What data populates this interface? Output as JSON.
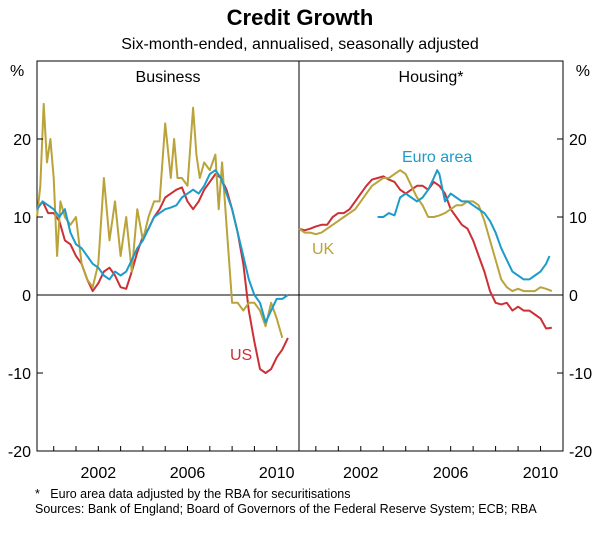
{
  "chart_data": {
    "type": "line",
    "title": "Credit Growth",
    "subtitle": "Six-month-ended, annualised, seasonally adjusted",
    "ylabel": "%",
    "ylim": [
      -20,
      30
    ],
    "yticks": [
      20,
      10,
      0,
      -10,
      -20
    ],
    "xlim": [
      1999.25,
      2011.0
    ],
    "xticks": [
      2002,
      2006,
      2010
    ],
    "panels": [
      {
        "title": "Business",
        "series": [
          {
            "name": "US",
            "color": "#cc2f36",
            "label_text": "US",
            "x": [
              1999.25,
              1999.5,
              1999.75,
              2000,
              2000.25,
              2000.5,
              2000.75,
              2001,
              2001.25,
              2001.5,
              2001.75,
              2002,
              2002.25,
              2002.5,
              2002.75,
              2003,
              2003.25,
              2003.5,
              2003.75,
              2004,
              2004.25,
              2004.5,
              2004.75,
              2005,
              2005.25,
              2005.5,
              2005.75,
              2006,
              2006.25,
              2006.5,
              2006.75,
              2007,
              2007.25,
              2007.5,
              2007.75,
              2008,
              2008.25,
              2008.5,
              2008.75,
              2009,
              2009.25,
              2009.5,
              2009.75,
              2010,
              2010.25,
              2010.5
            ],
            "y": [
              11,
              12,
              10.5,
              10.5,
              9.5,
              7,
              6.5,
              5,
              4,
              2,
              0.5,
              1.5,
              3,
              3.5,
              2.5,
              1,
              0.8,
              3,
              5.5,
              7.5,
              8.5,
              10,
              11,
              12.5,
              13,
              13.5,
              13.8,
              12,
              11,
              12,
              13.5,
              14.5,
              15.5,
              15,
              13.5,
              11,
              8,
              4,
              -2,
              -6,
              -9.5,
              -10,
              -9.5,
              -8,
              -7,
              -5.5
            ]
          },
          {
            "name": "UK",
            "color": "#b9a33a",
            "label_text": "",
            "x": [
              1999.25,
              1999.4,
              1999.55,
              1999.7,
              1999.85,
              2000,
              2000.15,
              2000.3,
              2000.5,
              2000.75,
              2001,
              2001.25,
              2001.5,
              2001.75,
              2002,
              2002.25,
              2002.5,
              2002.75,
              2003,
              2003.25,
              2003.5,
              2003.75,
              2004,
              2004.25,
              2004.5,
              2004.75,
              2005,
              2005.25,
              2005.4,
              2005.55,
              2005.75,
              2006,
              2006.25,
              2006.4,
              2006.55,
              2006.75,
              2007,
              2007.25,
              2007.4,
              2007.55,
              2007.75,
              2008,
              2008.25,
              2008.5,
              2008.75,
              2009,
              2009.25,
              2009.5,
              2009.75,
              2010,
              2010.25
            ],
            "y": [
              10,
              14,
              24.5,
              17,
              20,
              15,
              5,
              12,
              10,
              9,
              10,
              4,
              2,
              1,
              4,
              15,
              7,
              12,
              5,
              10,
              3,
              11,
              7,
              10,
              12,
              12,
              22,
              15,
              20,
              15,
              15,
              14,
              24,
              18,
              15,
              17,
              16,
              18,
              11,
              17,
              9,
              -1,
              -1,
              -2,
              -1,
              -1,
              -2,
              -4,
              -1,
              -3,
              -5.5
            ]
          },
          {
            "name": "Euro area",
            "color": "#1d9bc9",
            "label_text": "",
            "x": [
              1999.25,
              1999.5,
              1999.75,
              2000,
              2000.25,
              2000.5,
              2000.75,
              2001,
              2001.25,
              2001.5,
              2001.75,
              2002,
              2002.25,
              2002.5,
              2002.75,
              2003,
              2003.25,
              2003.5,
              2003.75,
              2004,
              2004.25,
              2004.5,
              2004.75,
              2005,
              2005.25,
              2005.5,
              2005.75,
              2006,
              2006.25,
              2006.5,
              2006.75,
              2007,
              2007.25,
              2007.5,
              2007.75,
              2008,
              2008.25,
              2008.5,
              2008.75,
              2009,
              2009.25,
              2009.5,
              2009.75,
              2010,
              2010.25,
              2010.5
            ],
            "y": [
              11,
              12,
              11.5,
              11,
              10,
              11,
              8,
              6.5,
              6,
              5,
              4,
              3.5,
              2.5,
              2,
              3,
              2.5,
              3,
              4.5,
              6,
              7,
              8.5,
              10,
              10.5,
              11,
              11.2,
              11.5,
              12.5,
              13,
              13.5,
              13,
              14,
              15.5,
              16,
              15,
              13,
              11,
              8,
              5,
              2,
              0,
              -1,
              -3.5,
              -2,
              -0.5,
              -0.5,
              0
            ]
          }
        ]
      },
      {
        "title": "Housing*",
        "series": [
          {
            "name": "US",
            "color": "#cc2f36",
            "label_text": "",
            "x": [
              1999.25,
              1999.5,
              1999.75,
              2000,
              2000.25,
              2000.5,
              2000.75,
              2001,
              2001.25,
              2001.5,
              2001.75,
              2002,
              2002.25,
              2002.5,
              2002.75,
              2003,
              2003.25,
              2003.5,
              2003.75,
              2004,
              2004.25,
              2004.5,
              2004.75,
              2005,
              2005.25,
              2005.5,
              2005.75,
              2006,
              2006.25,
              2006.5,
              2006.75,
              2007,
              2007.25,
              2007.5,
              2007.75,
              2008,
              2008.25,
              2008.5,
              2008.75,
              2009,
              2009.25,
              2009.5,
              2009.75,
              2010,
              2010.25,
              2010.5
            ],
            "y": [
              8.5,
              8.3,
              8.5,
              8.8,
              9,
              9,
              10,
              10.5,
              10.5,
              11,
              12,
              13,
              14,
              14.8,
              15,
              15.2,
              14.8,
              14.5,
              13.5,
              13,
              13.5,
              14,
              14,
              13.5,
              14.5,
              14,
              13,
              11,
              10,
              9,
              8.5,
              7,
              5,
              3,
              0.5,
              -1,
              -1.2,
              -1,
              -2,
              -1.5,
              -2,
              -2,
              -2.5,
              -3,
              -4.3,
              -4.2
            ]
          },
          {
            "name": "UK",
            "color": "#b9a33a",
            "label_text": "UK",
            "x": [
              1999.25,
              1999.5,
              1999.75,
              2000,
              2000.25,
              2000.5,
              2000.75,
              2001,
              2001.25,
              2001.5,
              2001.75,
              2002,
              2002.25,
              2002.5,
              2002.75,
              2003,
              2003.25,
              2003.5,
              2003.75,
              2004,
              2004.25,
              2004.5,
              2004.75,
              2005,
              2005.25,
              2005.5,
              2005.75,
              2006,
              2006.25,
              2006.5,
              2006.75,
              2007,
              2007.25,
              2007.5,
              2007.75,
              2008,
              2008.25,
              2008.5,
              2008.75,
              2009,
              2009.25,
              2009.5,
              2009.75,
              2010,
              2010.25,
              2010.5
            ],
            "y": [
              8.5,
              8,
              8,
              7.8,
              8,
              8.5,
              9,
              9.5,
              10,
              10.5,
              11,
              12,
              13,
              14,
              14.5,
              15,
              15,
              15.5,
              16,
              15.5,
              14,
              12.5,
              11.5,
              10,
              10,
              10.2,
              10.5,
              11,
              11.5,
              11.5,
              12,
              12,
              11.5,
              9.5,
              7,
              4.5,
              2,
              1,
              0.5,
              0.8,
              0.5,
              0.5,
              0.5,
              1,
              0.8,
              0.5
            ]
          },
          {
            "name": "Euro area",
            "color": "#1d9bc9",
            "label_text": "Euro area",
            "x": [
              2002.75,
              2003,
              2003.25,
              2003.5,
              2003.75,
              2004,
              2004.25,
              2004.5,
              2004.75,
              2005,
              2005.25,
              2005.4,
              2005.5,
              2005.75,
              2006,
              2006.25,
              2006.5,
              2006.75,
              2007,
              2007.25,
              2007.5,
              2007.75,
              2008,
              2008.25,
              2008.5,
              2008.75,
              2009,
              2009.25,
              2009.5,
              2009.75,
              2010,
              2010.25,
              2010.4
            ],
            "y": [
              10,
              10,
              10.5,
              10.2,
              12.5,
              13,
              12.5,
              12,
              12.5,
              13.5,
              15,
              16,
              15.5,
              12,
              13,
              12.5,
              12,
              12,
              11.5,
              11,
              10.5,
              9.5,
              8,
              6,
              4.5,
              3,
              2.5,
              2,
              2,
              2.5,
              3,
              4,
              5
            ]
          }
        ]
      }
    ]
  },
  "footnote": {
    "marker": "*",
    "text": "Euro area data adjusted by the RBA for securitisations"
  },
  "sources": {
    "label": "Sources:",
    "text": "Bank of England; Board of Governors of the Federal Reserve System; ECB; RBA"
  }
}
